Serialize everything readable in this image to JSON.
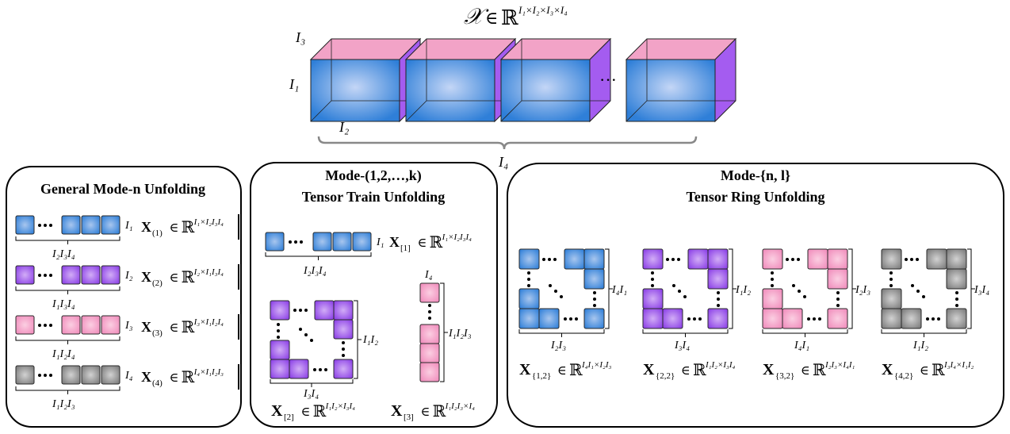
{
  "colors": {
    "blue": [
      "#2f7fd8",
      "#a8c6ee"
    ],
    "purple": [
      "#8a3ee6",
      "#d2adf6"
    ],
    "pink": [
      "#f08bbb",
      "#fbcfe2"
    ],
    "gray": [
      "#7a7a7a",
      "#d2d2d2"
    ],
    "cube_top": "#f2a3c7",
    "cube_side": "#a45cf0",
    "panel_border": "#000000"
  },
  "header": {
    "tensor": "𝒳",
    "in": "∈",
    "field": "ℝ",
    "dims": "I₁×I₂×I₃×I₄",
    "dim_i1": "I₁",
    "dim_i2": "I₂",
    "dim_i3": "I₃",
    "dim_i4": "I₄",
    "ellipsis": "···"
  },
  "panels": {
    "general": {
      "title": "General Mode-n Unfolding",
      "rows": [
        {
          "color": "blue",
          "row_dim": "I₁",
          "under": "I₂I₃I₄",
          "mat": "X",
          "sub": "(1)",
          "in": "∈",
          "field": "ℝ",
          "sup": "I₁×I₂I₃I₄"
        },
        {
          "color": "purple",
          "row_dim": "I₂",
          "under": "I₁I₃I₄",
          "mat": "X",
          "sub": "(2)",
          "in": "∈",
          "field": "ℝ",
          "sup": "I₂×I₁I₃I₄"
        },
        {
          "color": "pink",
          "row_dim": "I₃",
          "under": "I₁I₂I₄",
          "mat": "X",
          "sub": "(3)",
          "in": "∈",
          "field": "ℝ",
          "sup": "I₃×I₁I₂I₄"
        },
        {
          "color": "gray",
          "row_dim": "I₄",
          "under": "I₁I₂I₃",
          "mat": "X",
          "sub": "(4)",
          "in": "∈",
          "field": "ℝ",
          "sup": "I₄×I₁I₂I₃"
        }
      ]
    },
    "train": {
      "title_line1": "Mode-(1,2,…,k)",
      "title_line2": "Tensor Train Unfolding",
      "row1": {
        "row_dim": "I₁",
        "under": "I₂I₃I₄",
        "mat": "X",
        "sub": "[1]",
        "in": "∈",
        "field": "ℝ",
        "sup": "I₁×I₂I₃I₄"
      },
      "block2": {
        "side": "I₁I₂",
        "under": "I₃I₄",
        "mat": "X",
        "sub": "[2]",
        "in": "∈",
        "field": "ℝ",
        "sup": "I₁I₂×I₃I₄"
      },
      "block3": {
        "top": "I₄",
        "side": "I₁I₂I₃",
        "mat": "X",
        "sub": "[3]",
        "in": "∈",
        "field": "ℝ",
        "sup": "I₁I₂I₃×I₄"
      }
    },
    "ring": {
      "title_line1": "Mode-{n, l}",
      "title_line2": "Tensor Ring Unfolding",
      "items": [
        {
          "color": "blue",
          "side": "I₄I₁",
          "under": "I₂I₃",
          "mat": "X",
          "sub": "{1,2}",
          "in": "∈",
          "field": "ℝ",
          "sup": "I₄I₁×I₂I₃"
        },
        {
          "color": "purple",
          "side": "I₁I₂",
          "under": "I₃I₄",
          "mat": "X",
          "sub": "{2,2}",
          "in": "∈",
          "field": "ℝ",
          "sup": "I₁I₂×I₃I₄"
        },
        {
          "color": "pink",
          "side": "I₂I₃",
          "under": "I₄I₁",
          "mat": "X",
          "sub": "{3,2}",
          "in": "∈",
          "field": "ℝ",
          "sup": "I₂I₃×I₄I₁"
        },
        {
          "color": "gray",
          "side": "I₃I₄",
          "under": "I₁I₂",
          "mat": "X",
          "sub": "{4,2}",
          "in": "∈",
          "field": "ℝ",
          "sup": "I₃I₄×I₁I₂"
        }
      ]
    }
  }
}
